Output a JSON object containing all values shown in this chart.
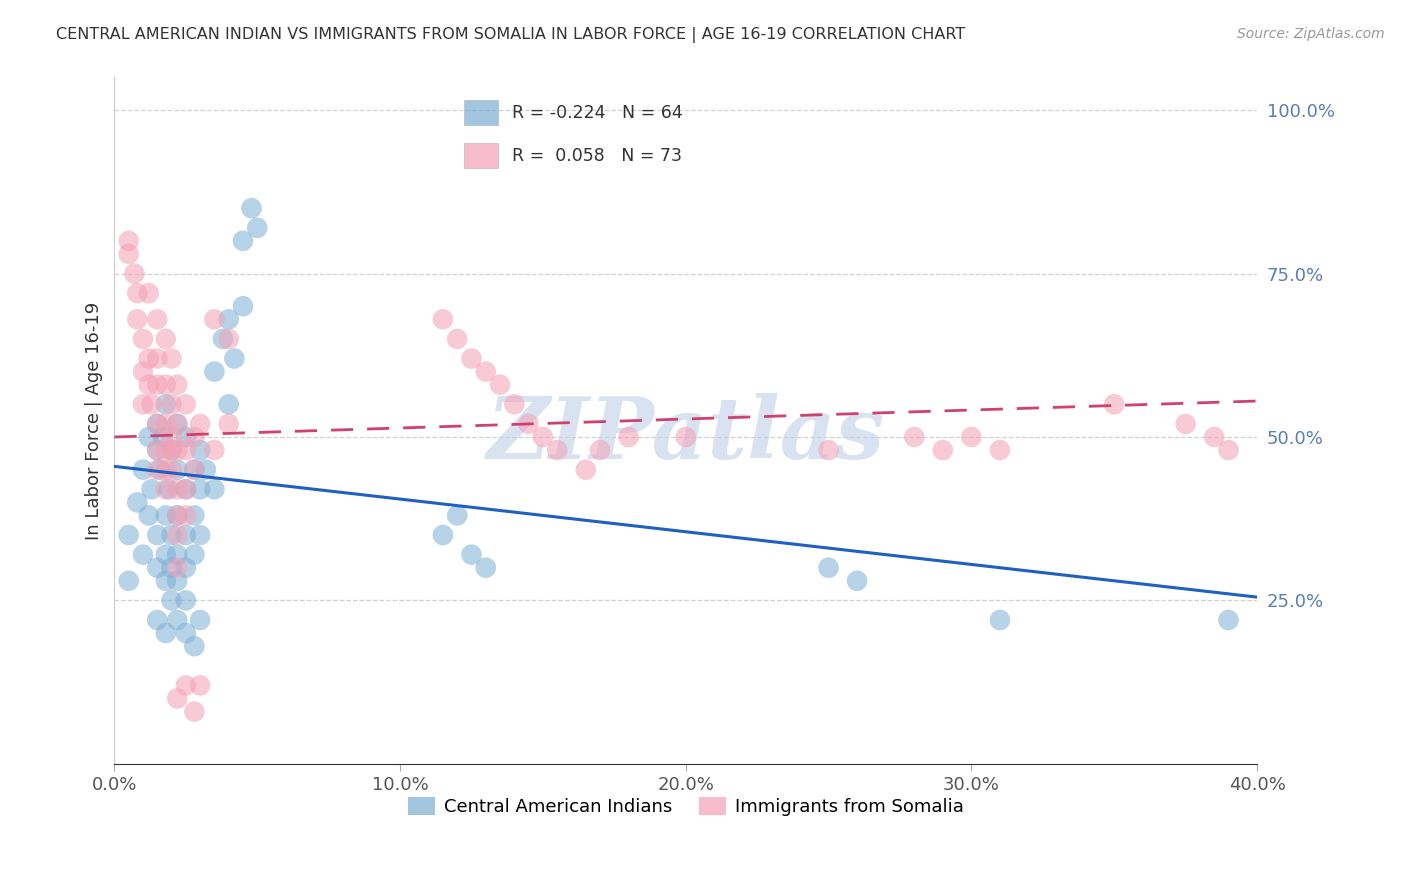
{
  "title": "CENTRAL AMERICAN INDIAN VS IMMIGRANTS FROM SOMALIA IN LABOR FORCE | AGE 16-19 CORRELATION CHART",
  "source": "Source: ZipAtlas.com",
  "ylabel": "In Labor Force | Age 16-19",
  "xmin": 0.0,
  "xmax": 0.4,
  "ymin": 0.0,
  "ymax": 1.05,
  "yticks": [
    0.25,
    0.5,
    0.75,
    1.0
  ],
  "ytick_labels": [
    "25.0%",
    "50.0%",
    "75.0%",
    "100.0%"
  ],
  "xticks": [
    0.0,
    0.1,
    0.2,
    0.3,
    0.4
  ],
  "xtick_labels": [
    "0.0%",
    "10.0%",
    "20.0%",
    "30.0%",
    "40.0%"
  ],
  "blue_color": "#7bafd4",
  "pink_color": "#f4a0b5",
  "blue_line_color": "#2060c0",
  "pink_line_color": "#d04070",
  "watermark": "ZIPatlas",
  "watermark_color": "#c0d0e8",
  "grid_color": "#cccccc",
  "axis_color": "#5a7fb5",
  "blue_scatter": [
    [
      0.005,
      0.35
    ],
    [
      0.008,
      0.4
    ],
    [
      0.01,
      0.45
    ],
    [
      0.012,
      0.5
    ],
    [
      0.012,
      0.38
    ],
    [
      0.013,
      0.42
    ],
    [
      0.015,
      0.48
    ],
    [
      0.015,
      0.52
    ],
    [
      0.015,
      0.3
    ],
    [
      0.015,
      0.35
    ],
    [
      0.016,
      0.45
    ],
    [
      0.017,
      0.5
    ],
    [
      0.018,
      0.55
    ],
    [
      0.018,
      0.38
    ],
    [
      0.018,
      0.32
    ],
    [
      0.018,
      0.28
    ],
    [
      0.019,
      0.42
    ],
    [
      0.02,
      0.48
    ],
    [
      0.02,
      0.35
    ],
    [
      0.02,
      0.3
    ],
    [
      0.022,
      0.45
    ],
    [
      0.022,
      0.52
    ],
    [
      0.022,
      0.38
    ],
    [
      0.022,
      0.32
    ],
    [
      0.022,
      0.28
    ],
    [
      0.025,
      0.5
    ],
    [
      0.025,
      0.42
    ],
    [
      0.025,
      0.35
    ],
    [
      0.025,
      0.3
    ],
    [
      0.025,
      0.25
    ],
    [
      0.028,
      0.45
    ],
    [
      0.028,
      0.38
    ],
    [
      0.028,
      0.32
    ],
    [
      0.03,
      0.48
    ],
    [
      0.03,
      0.42
    ],
    [
      0.03,
      0.35
    ],
    [
      0.032,
      0.45
    ],
    [
      0.035,
      0.42
    ],
    [
      0.035,
      0.6
    ],
    [
      0.038,
      0.65
    ],
    [
      0.04,
      0.68
    ],
    [
      0.04,
      0.55
    ],
    [
      0.042,
      0.62
    ],
    [
      0.045,
      0.7
    ],
    [
      0.045,
      0.8
    ],
    [
      0.048,
      0.85
    ],
    [
      0.05,
      0.82
    ],
    [
      0.005,
      0.28
    ],
    [
      0.01,
      0.32
    ],
    [
      0.015,
      0.22
    ],
    [
      0.018,
      0.2
    ],
    [
      0.02,
      0.25
    ],
    [
      0.022,
      0.22
    ],
    [
      0.025,
      0.2
    ],
    [
      0.028,
      0.18
    ],
    [
      0.03,
      0.22
    ],
    [
      0.115,
      0.35
    ],
    [
      0.12,
      0.38
    ],
    [
      0.125,
      0.32
    ],
    [
      0.13,
      0.3
    ],
    [
      0.25,
      0.3
    ],
    [
      0.26,
      0.28
    ],
    [
      0.31,
      0.22
    ],
    [
      0.39,
      0.22
    ]
  ],
  "pink_scatter": [
    [
      0.005,
      0.8
    ],
    [
      0.005,
      0.78
    ],
    [
      0.007,
      0.75
    ],
    [
      0.008,
      0.72
    ],
    [
      0.008,
      0.68
    ],
    [
      0.01,
      0.65
    ],
    [
      0.01,
      0.6
    ],
    [
      0.01,
      0.55
    ],
    [
      0.012,
      0.72
    ],
    [
      0.012,
      0.62
    ],
    [
      0.012,
      0.58
    ],
    [
      0.013,
      0.55
    ],
    [
      0.015,
      0.68
    ],
    [
      0.015,
      0.62
    ],
    [
      0.015,
      0.58
    ],
    [
      0.015,
      0.52
    ],
    [
      0.015,
      0.48
    ],
    [
      0.015,
      0.45
    ],
    [
      0.018,
      0.65
    ],
    [
      0.018,
      0.58
    ],
    [
      0.018,
      0.52
    ],
    [
      0.018,
      0.48
    ],
    [
      0.018,
      0.45
    ],
    [
      0.018,
      0.42
    ],
    [
      0.02,
      0.62
    ],
    [
      0.02,
      0.55
    ],
    [
      0.02,
      0.5
    ],
    [
      0.02,
      0.48
    ],
    [
      0.02,
      0.45
    ],
    [
      0.022,
      0.58
    ],
    [
      0.022,
      0.52
    ],
    [
      0.022,
      0.48
    ],
    [
      0.022,
      0.42
    ],
    [
      0.022,
      0.38
    ],
    [
      0.022,
      0.35
    ],
    [
      0.022,
      0.3
    ],
    [
      0.022,
      0.1
    ],
    [
      0.025,
      0.55
    ],
    [
      0.025,
      0.48
    ],
    [
      0.025,
      0.42
    ],
    [
      0.025,
      0.38
    ],
    [
      0.025,
      0.12
    ],
    [
      0.028,
      0.5
    ],
    [
      0.028,
      0.45
    ],
    [
      0.028,
      0.08
    ],
    [
      0.03,
      0.52
    ],
    [
      0.03,
      0.12
    ],
    [
      0.035,
      0.68
    ],
    [
      0.035,
      0.48
    ],
    [
      0.04,
      0.65
    ],
    [
      0.04,
      0.52
    ],
    [
      0.115,
      0.68
    ],
    [
      0.12,
      0.65
    ],
    [
      0.125,
      0.62
    ],
    [
      0.13,
      0.6
    ],
    [
      0.135,
      0.58
    ],
    [
      0.14,
      0.55
    ],
    [
      0.145,
      0.52
    ],
    [
      0.15,
      0.5
    ],
    [
      0.155,
      0.48
    ],
    [
      0.2,
      0.5
    ],
    [
      0.25,
      0.48
    ],
    [
      0.3,
      0.5
    ],
    [
      0.31,
      0.48
    ],
    [
      0.35,
      0.55
    ],
    [
      0.375,
      0.52
    ],
    [
      0.385,
      0.5
    ],
    [
      0.39,
      0.48
    ],
    [
      0.29,
      0.48
    ],
    [
      0.28,
      0.5
    ],
    [
      0.165,
      0.45
    ],
    [
      0.17,
      0.48
    ],
    [
      0.18,
      0.5
    ]
  ]
}
